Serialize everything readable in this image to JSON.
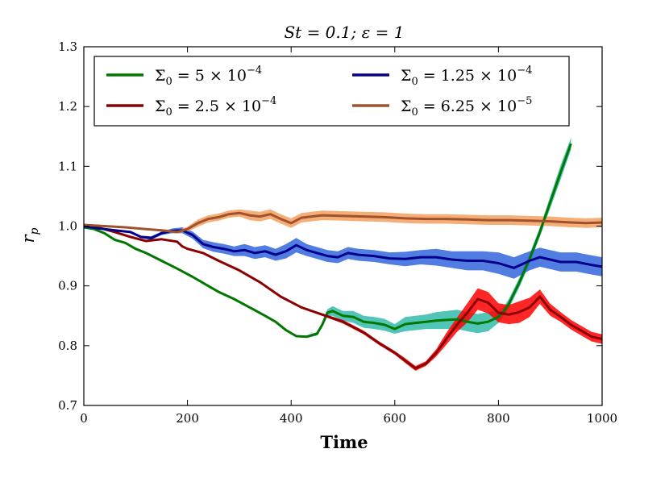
{
  "chart_data": {
    "type": "line",
    "title": "St = 0.1; ε = 1",
    "xlabel": "Time",
    "ylabel": "r_p",
    "xlim": [
      0,
      1000
    ],
    "ylim": [
      0.7,
      1.3
    ],
    "xticks": [
      0,
      200,
      400,
      600,
      800,
      1000
    ],
    "yticks": [
      0.7,
      0.8,
      0.9,
      1.0,
      1.1,
      1.2,
      1.3
    ],
    "xtick_labels": [
      "0",
      "200",
      "400",
      "600",
      "800",
      "1000"
    ],
    "ytick_labels": [
      "0.7",
      "0.8",
      "0.9",
      "1.0",
      "1.1",
      "1.2",
      "1.3"
    ],
    "grid": false,
    "legend_position": "top",
    "series": [
      {
        "name": "Σ0 = 5 × 10^-4",
        "legend_main": "Σ",
        "legend_sub": "0",
        "legend_mid": " = 5 × 10",
        "legend_exp": "−4",
        "color": "#007700",
        "band_color": "#33bbaa",
        "x": [
          0,
          20,
          40,
          60,
          80,
          100,
          120,
          150,
          180,
          210,
          240,
          260,
          290,
          320,
          350,
          370,
          390,
          410,
          430,
          450,
          460,
          470,
          480,
          500,
          520,
          540,
          560,
          580,
          600,
          620,
          640,
          660,
          680,
          700,
          720,
          740,
          760,
          780,
          800,
          810,
          820,
          840,
          860,
          880,
          900,
          920,
          940
        ],
        "values": [
          0.998,
          0.995,
          0.988,
          0.977,
          0.972,
          0.962,
          0.955,
          0.942,
          0.929,
          0.915,
          0.9,
          0.89,
          0.878,
          0.864,
          0.85,
          0.84,
          0.826,
          0.816,
          0.815,
          0.82,
          0.835,
          0.855,
          0.858,
          0.85,
          0.848,
          0.84,
          0.838,
          0.835,
          0.828,
          0.836,
          0.838,
          0.84,
          0.842,
          0.843,
          0.844,
          0.84,
          0.837,
          0.84,
          0.848,
          0.857,
          0.87,
          0.905,
          0.945,
          0.99,
          1.04,
          1.09,
          1.138
        ],
        "spread": [
          0.001,
          0.001,
          0.001,
          0.001,
          0.001,
          0.001,
          0.001,
          0.001,
          0.001,
          0.001,
          0.001,
          0.001,
          0.001,
          0.001,
          0.001,
          0.001,
          0.001,
          0.001,
          0.002,
          0.003,
          0.004,
          0.006,
          0.008,
          0.008,
          0.01,
          0.01,
          0.01,
          0.01,
          0.008,
          0.012,
          0.012,
          0.012,
          0.014,
          0.015,
          0.016,
          0.016,
          0.016,
          0.016,
          0.01,
          0.008,
          0.008,
          0.008,
          0.008,
          0.008,
          0.01,
          0.012,
          0.01
        ]
      },
      {
        "name": "Σ0 = 2.5 × 10^-4",
        "legend_main": "Σ",
        "legend_sub": "0",
        "legend_mid": " = 2.5 × 10",
        "legend_exp": "−4",
        "color": "#8b0000",
        "band_color": "#ff0000",
        "x": [
          0,
          30,
          60,
          90,
          120,
          150,
          180,
          190,
          200,
          230,
          260,
          300,
          340,
          380,
          420,
          460,
          500,
          540,
          570,
          600,
          620,
          640,
          660,
          680,
          700,
          720,
          740,
          760,
          780,
          800,
          820,
          840,
          860,
          880,
          900,
          920,
          940,
          960,
          980,
          1000
        ],
        "values": [
          1.0,
          0.997,
          0.99,
          0.982,
          0.975,
          0.978,
          0.974,
          0.966,
          0.962,
          0.955,
          0.942,
          0.926,
          0.906,
          0.882,
          0.864,
          0.852,
          0.84,
          0.822,
          0.804,
          0.788,
          0.775,
          0.762,
          0.77,
          0.788,
          0.812,
          0.835,
          0.855,
          0.878,
          0.872,
          0.855,
          0.852,
          0.856,
          0.864,
          0.882,
          0.86,
          0.848,
          0.835,
          0.825,
          0.815,
          0.811
        ],
        "spread": [
          0.001,
          0.001,
          0.001,
          0.001,
          0.001,
          0.001,
          0.001,
          0.001,
          0.001,
          0.001,
          0.001,
          0.001,
          0.001,
          0.001,
          0.001,
          0.002,
          0.003,
          0.003,
          0.003,
          0.003,
          0.004,
          0.004,
          0.004,
          0.006,
          0.01,
          0.012,
          0.016,
          0.018,
          0.018,
          0.016,
          0.016,
          0.018,
          0.016,
          0.012,
          0.01,
          0.008,
          0.008,
          0.008,
          0.008,
          0.008
        ]
      },
      {
        "name": "Σ0 = 1.25 × 10^-4",
        "legend_main": "Σ",
        "legend_sub": "0",
        "legend_mid": " = 1.25 × 10",
        "legend_exp": "−4",
        "color": "#00008b",
        "band_color": "#3366dd",
        "x": [
          0,
          30,
          60,
          90,
          110,
          130,
          150,
          170,
          190,
          210,
          230,
          250,
          270,
          290,
          310,
          330,
          350,
          370,
          390,
          410,
          430,
          450,
          470,
          490,
          510,
          530,
          560,
          590,
          620,
          650,
          680,
          710,
          740,
          770,
          800,
          830,
          860,
          880,
          900,
          920,
          950,
          980,
          1000
        ],
        "values": [
          1.0,
          0.996,
          0.993,
          0.99,
          0.982,
          0.98,
          0.988,
          0.992,
          0.993,
          0.985,
          0.97,
          0.965,
          0.962,
          0.958,
          0.96,
          0.955,
          0.958,
          0.952,
          0.958,
          0.968,
          0.96,
          0.955,
          0.95,
          0.948,
          0.955,
          0.952,
          0.95,
          0.946,
          0.945,
          0.948,
          0.948,
          0.944,
          0.942,
          0.942,
          0.938,
          0.93,
          0.942,
          0.948,
          0.944,
          0.94,
          0.94,
          0.935,
          0.932
        ],
        "spread": [
          0.001,
          0.001,
          0.001,
          0.002,
          0.002,
          0.003,
          0.003,
          0.004,
          0.005,
          0.006,
          0.007,
          0.008,
          0.008,
          0.008,
          0.01,
          0.01,
          0.01,
          0.01,
          0.012,
          0.012,
          0.01,
          0.01,
          0.01,
          0.01,
          0.01,
          0.01,
          0.01,
          0.01,
          0.012,
          0.012,
          0.014,
          0.014,
          0.016,
          0.016,
          0.018,
          0.018,
          0.016,
          0.016,
          0.016,
          0.016,
          0.016,
          0.016,
          0.016
        ]
      },
      {
        "name": "Σ0 = 6.25 × 10^-5",
        "legend_main": "Σ",
        "legend_sub": "0",
        "legend_mid": " = 6.25 × 10",
        "legend_exp": "−5",
        "color": "#a0522d",
        "band_color": "#f5a060",
        "x": [
          0,
          40,
          80,
          120,
          150,
          180,
          200,
          220,
          240,
          260,
          280,
          300,
          320,
          340,
          360,
          380,
          400,
          420,
          460,
          500,
          540,
          580,
          620,
          660,
          700,
          740,
          780,
          820,
          860,
          900,
          940,
          970,
          1000
        ],
        "values": [
          1.002,
          1.0,
          0.998,
          0.995,
          0.993,
          0.99,
          0.995,
          1.005,
          1.012,
          1.015,
          1.02,
          1.022,
          1.018,
          1.016,
          1.02,
          1.012,
          1.005,
          1.014,
          1.018,
          1.017,
          1.016,
          1.015,
          1.013,
          1.012,
          1.012,
          1.011,
          1.01,
          1.01,
          1.009,
          1.008,
          1.006,
          1.005,
          1.006
        ],
        "spread": [
          0.001,
          0.001,
          0.001,
          0.001,
          0.002,
          0.002,
          0.004,
          0.006,
          0.006,
          0.006,
          0.006,
          0.006,
          0.008,
          0.008,
          0.008,
          0.008,
          0.008,
          0.008,
          0.008,
          0.008,
          0.008,
          0.008,
          0.008,
          0.008,
          0.008,
          0.008,
          0.008,
          0.008,
          0.008,
          0.008,
          0.008,
          0.008,
          0.008
        ]
      }
    ]
  }
}
